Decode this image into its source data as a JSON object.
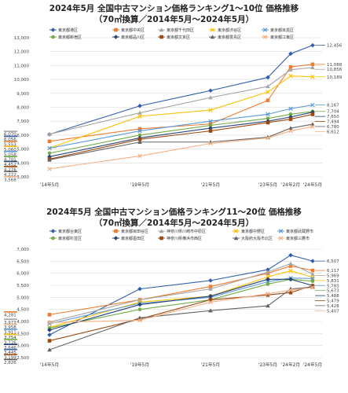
{
  "charts": [
    {
      "title": "2024年5月 全国中古マンション価格ランキング1～10位 価格推移",
      "subtitle": "（70㎡換算／2014年5月～2024年5月）"
    },
    {
      "title": "2024年5月 全国中古マンション価格ランキング11～20位 価格推移",
      "subtitle": "（70㎡換算／2014年5月～2024年5月）"
    }
  ],
  "chart_data": [
    {
      "type": "line",
      "title": "2024年5月 全国中古マンション価格ランキング1～10位 価格推移",
      "subtitle": "（70㎡換算／2014年5月～2024年5月）",
      "x": [
        "'14年5月",
        "'19年5月",
        "'21年5月",
        "'23年5月",
        "'24年2月",
        "'24年5月"
      ],
      "ylim": [
        3000,
        13000
      ],
      "yticks": [
        3000,
        4000,
        5000,
        6000,
        7000,
        8000,
        9000,
        10000,
        11000,
        12000,
        13000
      ],
      "grid": true,
      "legend": "top",
      "series": [
        {
          "name": "東京都港区",
          "color": "#2f5faa",
          "marker": "diamond",
          "values": [
            6056,
            8100,
            9200,
            10150,
            11850,
            12456
          ],
          "start_label": "6,056",
          "end_label": "12,456"
        },
        {
          "name": "東京都中央区",
          "color": "#ed7d31",
          "marker": "square",
          "values": [
            5553,
            6450,
            6800,
            8500,
            10900,
            11088
          ],
          "start_label": "5,553",
          "end_label": "11,088"
        },
        {
          "name": "東京都千代田区",
          "color": "#a5a5a5",
          "marker": "triangle",
          "values": [
            6070,
            7600,
            8700,
            9500,
            10700,
            10856
          ],
          "start_label": "6,070",
          "end_label": "10,856"
        },
        {
          "name": "東京都渋谷区",
          "color": "#ffc000",
          "marker": "x",
          "values": [
            5060,
            7350,
            7800,
            9100,
            10250,
            10189
          ],
          "start_label": "5,060",
          "end_label": "10,189"
        },
        {
          "name": "東京都目黒区",
          "color": "#5b9bd5",
          "marker": "x",
          "values": [
            5058,
            6300,
            7000,
            7500,
            7900,
            8167
          ],
          "start_label": "5,058",
          "end_label": "8,167"
        },
        {
          "name": "東京都新宿区",
          "color": "#70ad47",
          "marker": "circle",
          "values": [
            4701,
            6000,
            6700,
            7200,
            7500,
            7704
          ],
          "start_label": "4,701",
          "end_label": "7,704"
        },
        {
          "name": "東京都品川区",
          "color": "#264478",
          "marker": "diamond",
          "values": [
            4452,
            5800,
            6500,
            7000,
            7300,
            7650
          ],
          "start_label": "4,452",
          "end_label": "7,650"
        },
        {
          "name": "東京都文京区",
          "color": "#9e480e",
          "marker": "square",
          "values": [
            4276,
            5700,
            6300,
            6900,
            7150,
            7494
          ],
          "start_label": "4,276",
          "end_label": "7,494"
        },
        {
          "name": "東京都豊島区",
          "color": "#636363",
          "marker": "triangle",
          "values": [
            4222,
            5500,
            5500,
            5850,
            6500,
            6780
          ],
          "start_label": "4,222",
          "end_label": "6,780"
        },
        {
          "name": "東京都江東区",
          "color": "#f4b183",
          "marker": "x",
          "values": [
            3568,
            4500,
            5400,
            5800,
            6300,
            6612
          ],
          "start_label": "3,568",
          "end_label": "6,612"
        }
      ]
    },
    {
      "type": "line",
      "title": "2024年5月 全国中古マンション価格ランキング11～20位 価格推移",
      "subtitle": "（70㎡換算／2014年5月～2024年5月）",
      "x": [
        "'14年5月",
        "'19年5月",
        "'21年5月",
        "'23年5月",
        "'24年2月",
        "'24年5月"
      ],
      "ylim": [
        2500,
        7000
      ],
      "yticks": [
        2500,
        3000,
        3500,
        4000,
        4500,
        5000,
        5500,
        6000,
        6500,
        7000
      ],
      "grid": true,
      "legend": "top",
      "series": [
        {
          "name": "東京都台東区",
          "color": "#2f5faa",
          "marker": "diamond",
          "values": [
            3445,
            5350,
            5700,
            6150,
            6750,
            6507
          ],
          "start_label": "3,445",
          "end_label": "6,507"
        },
        {
          "name": "東京都目田谷区",
          "color": "#ed7d31",
          "marker": "square",
          "values": [
            4281,
            4900,
            5450,
            6000,
            6300,
            6117
          ],
          "start_label": "4,281",
          "end_label": "6,117"
        },
        {
          "name": "神奈川県川崎市中原区",
          "color": "#a5a5a5",
          "marker": "triangle",
          "values": [
            3973,
            4900,
            5350,
            6050,
            6400,
            5969
          ],
          "start_label": "3,973",
          "end_label": "5,969"
        },
        {
          "name": "東京都中野区",
          "color": "#ffc000",
          "marker": "x",
          "values": [
            3754,
            4800,
            5050,
            5850,
            6100,
            5831
          ],
          "start_label": "3,754",
          "end_label": "5,831"
        },
        {
          "name": "東京都武蔵野市",
          "color": "#5b9bd5",
          "marker": "x",
          "values": [
            3911,
            4750,
            5000,
            5650,
            5800,
            5783
          ],
          "start_label": "3,911",
          "end_label": "5,783"
        },
        {
          "name": "東京都杉並区",
          "color": "#70ad47",
          "marker": "circle",
          "values": [
            3726,
            4500,
            4900,
            5550,
            5750,
            5673
          ],
          "start_label": "3,726",
          "end_label": "5,673"
        },
        {
          "name": "東京都墨田区",
          "color": "#264478",
          "marker": "diamond",
          "values": [
            3646,
            4700,
            5050,
            5750,
            5750,
            5488
          ],
          "start_label": "3,646",
          "end_label": "5,488"
        },
        {
          "name": "神奈川県横浜市西区",
          "color": "#9e480e",
          "marker": "square",
          "values": [
            3199,
            4100,
            4900,
            5100,
            5200,
            5479
          ],
          "start_label": "3,199",
          "end_label": "5,479"
        },
        {
          "name": "大阪府大阪市北区",
          "color": "#636363",
          "marker": "triangle",
          "values": [
            2826,
            4150,
            4450,
            4650,
            5350,
            5428
          ],
          "start_label": "2,826",
          "end_label": "5,428"
        },
        {
          "name": "東京都三鷹市",
          "color": "#f4b183",
          "marker": "x",
          "values": [
            3958,
            4050,
            4800,
            5150,
            5300,
            5407
          ],
          "start_label": "3,958",
          "end_label": "5,407"
        }
      ]
    }
  ]
}
